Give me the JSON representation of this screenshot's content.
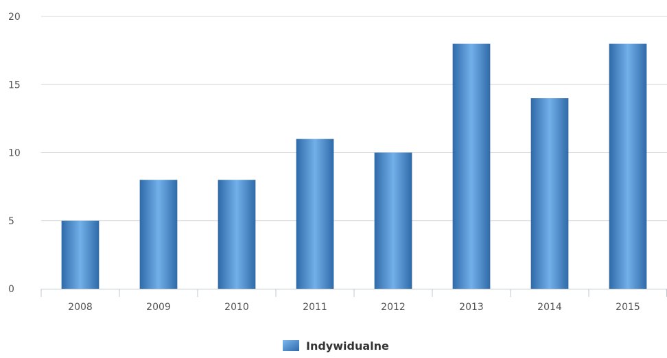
{
  "chart_data": {
    "type": "bar",
    "title": "",
    "xlabel": "",
    "ylabel": "",
    "categories": [
      "2008",
      "2009",
      "2010",
      "2011",
      "2012",
      "2013",
      "2014",
      "2015"
    ],
    "series": [
      {
        "name": "Indywidualne",
        "values": [
          5,
          8,
          8,
          11,
          10,
          18,
          14,
          18
        ],
        "color": "#4a8fd4"
      }
    ],
    "ylim": [
      0,
      20
    ],
    "yticks": [
      0,
      5,
      10,
      15,
      20
    ],
    "grid": true,
    "legend": "bottom-center"
  }
}
